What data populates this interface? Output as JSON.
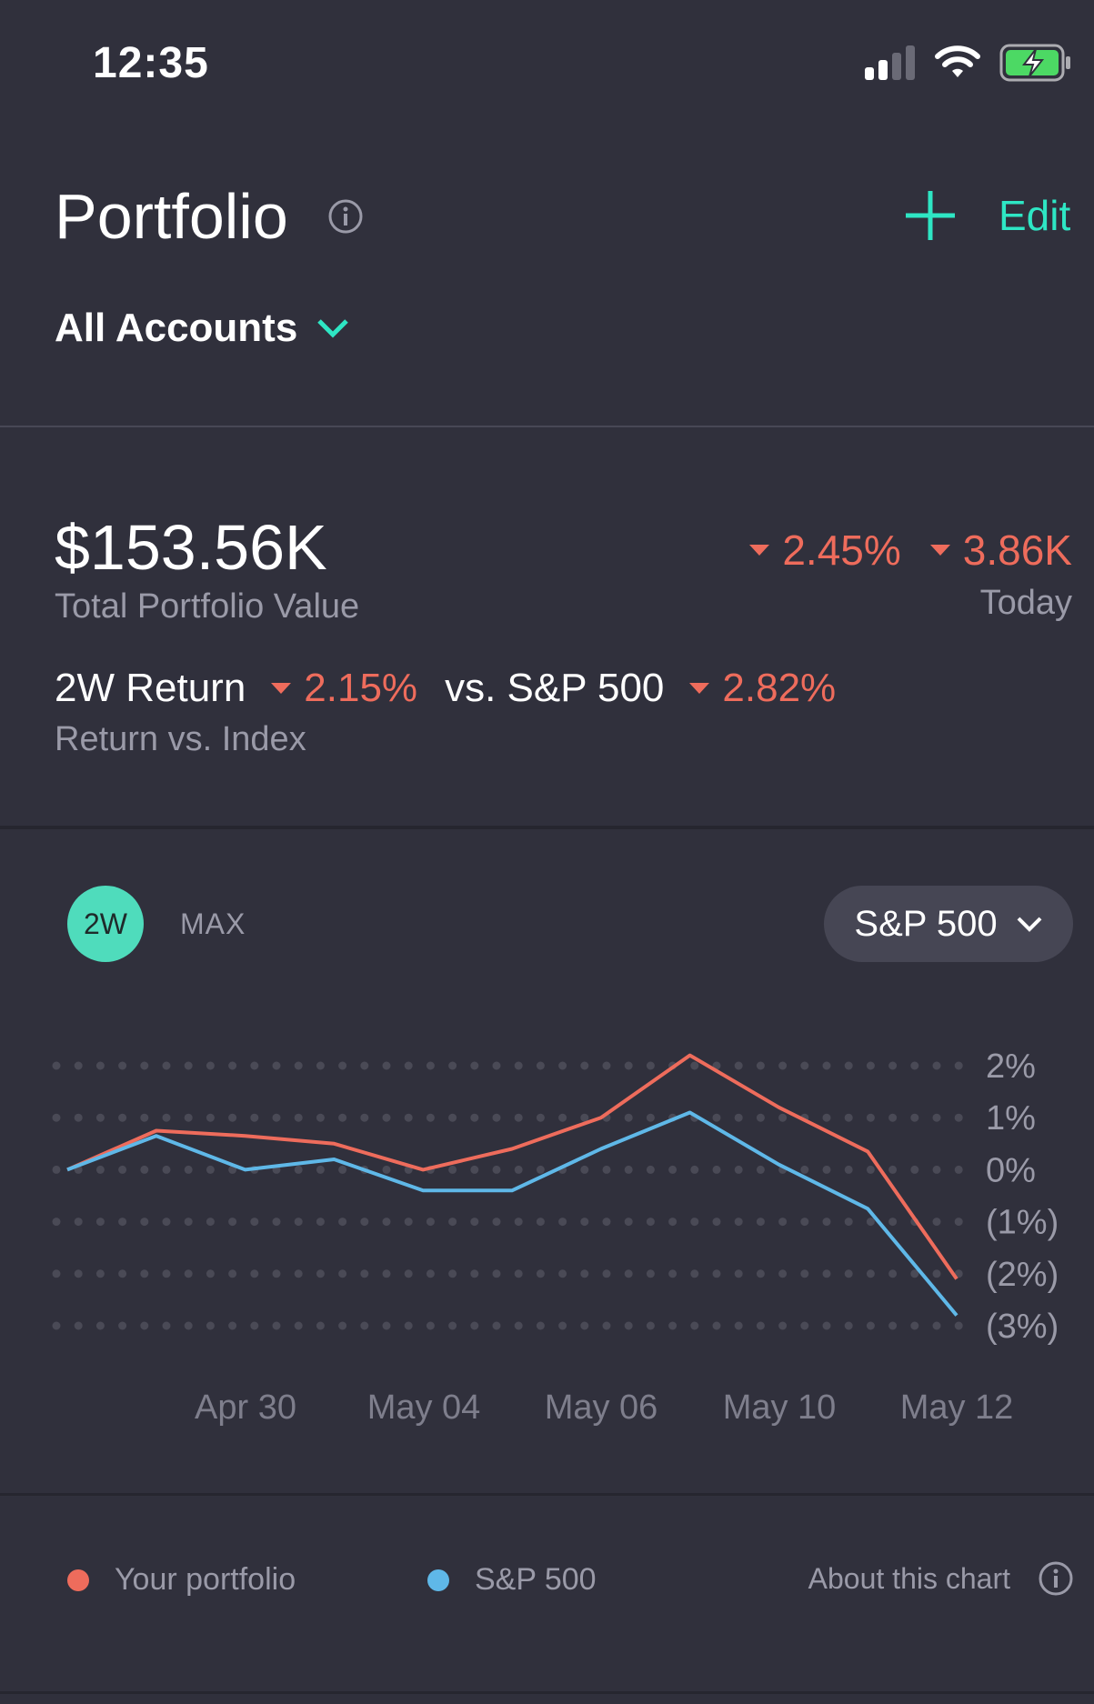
{
  "status_bar": {
    "time": "12:35"
  },
  "header": {
    "title": "Portfolio",
    "edit_label": "Edit",
    "accounts_label": "All Accounts"
  },
  "summary": {
    "total_value": "$153.56K",
    "total_label": "Total Portfolio Value",
    "today_pct": "2.45%",
    "today_amount": "3.86K",
    "today_label": "Today",
    "return_label": "2W Return",
    "return_pct": "2.15%",
    "vs_label": "vs. S&P 500",
    "index_pct": "2.82%",
    "return_sub": "Return vs. Index"
  },
  "controls": {
    "range_active": "2W",
    "range_max": "MAX",
    "index_select": "S&P 500"
  },
  "legend": {
    "portfolio": "Your portfolio",
    "index": "S&P 500",
    "about": "About this chart"
  },
  "colors": {
    "accent": "#2ee6c4",
    "negative": "#ee6c5c",
    "portfolio_line": "#ee6c5c",
    "index_line": "#5fb8e8",
    "background": "#30303c"
  },
  "chart_data": {
    "type": "line",
    "x_tick_labels": [
      "Apr 30",
      "May 04",
      "May 06",
      "May 10",
      "May 12"
    ],
    "y_tick_labels": [
      "2%",
      "1%",
      "0%",
      "(1%)",
      "(2%)",
      "(3%)"
    ],
    "ylim": [
      -3,
      2
    ],
    "grid": true,
    "series": [
      {
        "name": "Your portfolio",
        "color": "#ee6c5c",
        "values": [
          0.0,
          0.75,
          0.65,
          0.5,
          0.0,
          0.4,
          1.0,
          2.2,
          1.2,
          0.35,
          -2.1
        ]
      },
      {
        "name": "S&P 500",
        "color": "#5fb8e8",
        "values": [
          0.0,
          0.65,
          0.0,
          0.2,
          -0.4,
          -0.4,
          0.4,
          1.1,
          0.1,
          -0.75,
          -2.8
        ]
      }
    ]
  }
}
